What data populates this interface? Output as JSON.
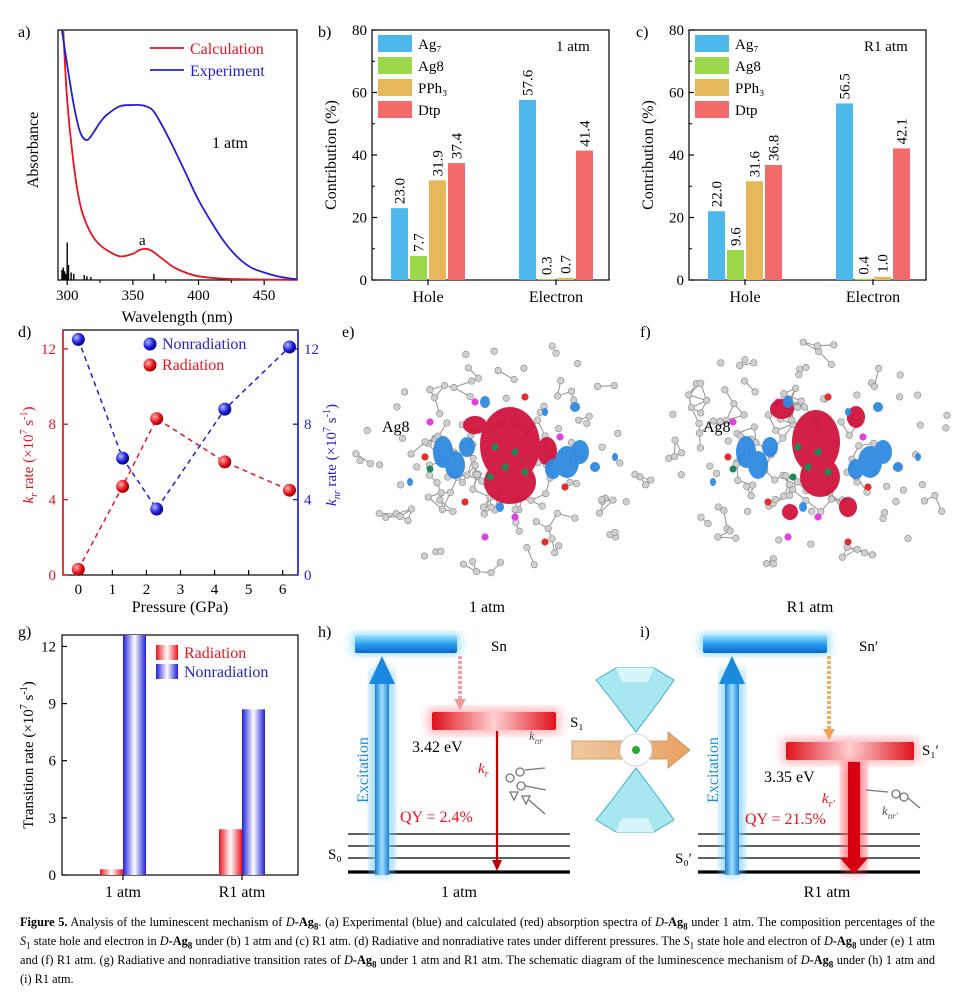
{
  "figure": {
    "panel_labels": {
      "a": "a)",
      "b": "b)",
      "c": "c)",
      "d": "d)",
      "e": "e)",
      "f": "f)",
      "g": "g)",
      "h": "h)",
      "i": "i)"
    },
    "caption": {
      "label": "Figure 5.",
      "s1": "Analysis of the luminescent mechanism of",
      "mol_prefix": "D",
      "mol_base": "-Ag",
      "mol_sub": "8",
      "s2": ". (a) Experimental (blue) and calculated (red) absorption spectra of",
      "s3": "under 1 atm. The composition percentages of the",
      "state": "S",
      "state_sub": "1",
      "s4": "state hole and electron in",
      "s5": "under (b) 1 atm and (c) R1 atm. (d) Radiative and nonradiative rates under different pressures. The",
      "s6": "state hole and electron of",
      "s7": "under (e) 1 atm and (f) R1 atm. (g) Radiative and nonradiative transition rates of",
      "s8": "under 1 atm and R1 atm. The schematic diagram of the luminescence mechanism of",
      "s9": "under (h) 1 atm and (i) R1 atm."
    }
  },
  "colors": {
    "calc": "#e8141e",
    "exp": "#1f1fd8",
    "ag7": "#4db8ec",
    "ag8": "#9ad84a",
    "pph3": "#e6b85a",
    "dtp": "#f26a6a"
  },
  "panel_a": {
    "legend": {
      "calc": "Calculation",
      "exp": "Experiment"
    },
    "condition": "1 atm",
    "peak_label": "a",
    "ylabel": "Absorbance",
    "xlabel": "Wavelength (nm)"
  },
  "panel_e": {
    "caption": "1 atm",
    "atom_label": "Ag8"
  },
  "panel_f": {
    "caption": "R1 atm",
    "atom_label": "Ag8"
  },
  "panel_h": {
    "sn": "Sn",
    "s1": "S₁",
    "s0": "S₀",
    "excitation": "Excitation",
    "energy": "3.42 eV",
    "qy": "QY = 2.4%",
    "kr": "k",
    "kr_sub": "r",
    "knr": "k",
    "knr_sub": "nr",
    "caption": "1 atm"
  },
  "panel_i": {
    "sn": "Sn′",
    "s1": "S₁′",
    "s0": "S₀′",
    "excitation": "Excitation",
    "energy": "3.35 eV",
    "qy": "QY = 21.5%",
    "kr": "k",
    "kr_sub": "r′",
    "knr": "k",
    "knr_sub": "nr′",
    "caption": "R1 atm"
  },
  "chart_data": [
    {
      "id": "a",
      "type": "line",
      "title": "",
      "xlabel": "Wavelength (nm)",
      "ylabel": "Absorbance",
      "xlim": [
        293,
        475
      ],
      "ylim": [
        0,
        1.0
      ],
      "xticks": [
        300,
        350,
        400,
        450
      ],
      "series": [
        {
          "name": "Calculation",
          "color": "#e8141e",
          "x": [
            297,
            300,
            305,
            310,
            315,
            320,
            325,
            330,
            340,
            350,
            355,
            360,
            365,
            370,
            380,
            390,
            400,
            420,
            450,
            475
          ],
          "y": [
            1.0,
            0.72,
            0.46,
            0.3,
            0.22,
            0.17,
            0.14,
            0.12,
            0.095,
            0.105,
            0.12,
            0.125,
            0.115,
            0.095,
            0.055,
            0.03,
            0.015,
            0.005,
            0.002,
            0.001
          ]
        },
        {
          "name": "Experiment",
          "color": "#1f1fd8",
          "x": [
            296,
            300,
            305,
            310,
            315,
            320,
            325,
            330,
            340,
            350,
            355,
            360,
            365,
            370,
            380,
            390,
            400,
            410,
            420,
            430,
            440,
            450,
            460,
            470,
            475
          ],
          "y": [
            1.0,
            0.86,
            0.7,
            0.59,
            0.56,
            0.59,
            0.63,
            0.66,
            0.695,
            0.7,
            0.7,
            0.695,
            0.68,
            0.64,
            0.54,
            0.43,
            0.32,
            0.23,
            0.15,
            0.09,
            0.05,
            0.03,
            0.015,
            0.006,
            0.003
          ]
        }
      ],
      "stick_spectrum": {
        "x": [
          296,
          297,
          298,
          299,
          300,
          301,
          303,
          305,
          313,
          315,
          318,
          366
        ],
        "y": [
          0.04,
          0.05,
          0.035,
          0.025,
          0.15,
          0.06,
          0.03,
          0.025,
          0.02,
          0.015,
          0.012,
          0.025
        ]
      }
    },
    {
      "id": "b",
      "type": "bar",
      "title": "1 atm",
      "ylabel": "Contribution (%)",
      "categories": [
        "Hole",
        "Electron"
      ],
      "ylim": [
        0,
        80
      ],
      "yticks": [
        0,
        20,
        40,
        60,
        80
      ],
      "series": [
        {
          "name": "Ag₇",
          "values": [
            23.0,
            57.6
          ]
        },
        {
          "name": "Ag8",
          "values": [
            7.7,
            0.3
          ]
        },
        {
          "name": "PPh₃",
          "values": [
            31.9,
            0.7
          ]
        },
        {
          "name": "Dtp",
          "values": [
            37.4,
            41.4
          ]
        }
      ],
      "value_labels": [
        [
          "23.0",
          "57.6"
        ],
        [
          "7.7",
          "0.3"
        ],
        [
          "31.9",
          "0.7"
        ],
        [
          "37.4",
          "41.4"
        ]
      ]
    },
    {
      "id": "c",
      "type": "bar",
      "title": "R1 atm",
      "ylabel": "Contribution (%)",
      "categories": [
        "Hole",
        "Electron"
      ],
      "ylim": [
        0,
        80
      ],
      "yticks": [
        0,
        20,
        40,
        60,
        80
      ],
      "series": [
        {
          "name": "Ag₇",
          "values": [
            22.0,
            56.5
          ]
        },
        {
          "name": "Ag8",
          "values": [
            9.6,
            0.4
          ]
        },
        {
          "name": "PPh₃",
          "values": [
            31.6,
            1.0
          ]
        },
        {
          "name": "Dtp",
          "values": [
            36.8,
            42.1
          ]
        }
      ],
      "value_labels": [
        [
          "22.0",
          "56.5"
        ],
        [
          "9.6",
          "0.4"
        ],
        [
          "31.6",
          "1.0"
        ],
        [
          "36.8",
          "42.1"
        ]
      ]
    },
    {
      "id": "d",
      "type": "scatter",
      "xlabel": "Pressure (GPa)",
      "ylabel_left": "k_r rate (×10^7 s^-1)",
      "ylabel_right": "k_nr rate (×10^7 s^-1)",
      "xlim": [
        -0.45,
        6.45
      ],
      "ylim": [
        0,
        13
      ],
      "xticks": [
        0,
        1,
        2,
        3,
        4,
        5,
        6
      ],
      "yticks": [
        0,
        4,
        8,
        12
      ],
      "series": [
        {
          "name": "Nonradiation",
          "color": "#1f1fd8",
          "x": [
            0.0,
            1.3,
            2.3,
            4.3,
            6.2
          ],
          "y": [
            12.5,
            6.2,
            3.5,
            8.8,
            12.1
          ]
        },
        {
          "name": "Radiation",
          "color": "#e8141e",
          "x": [
            0.0,
            1.3,
            2.3,
            4.3,
            6.2
          ],
          "y": [
            0.3,
            4.7,
            8.3,
            6.0,
            4.5
          ]
        }
      ]
    },
    {
      "id": "g",
      "type": "bar",
      "ylabel": "Transition rate (×10^7 s^-1)",
      "categories": [
        "1 atm",
        "R1 atm"
      ],
      "ylim": [
        0,
        12.6
      ],
      "yticks": [
        0,
        3,
        6,
        9,
        12
      ],
      "series": [
        {
          "name": "Radiation",
          "color": "#e8141e",
          "values": [
            0.3,
            2.4
          ]
        },
        {
          "name": "Nonradiation",
          "color": "#1f1fd8",
          "values": [
            12.6,
            8.7
          ]
        }
      ]
    }
  ]
}
